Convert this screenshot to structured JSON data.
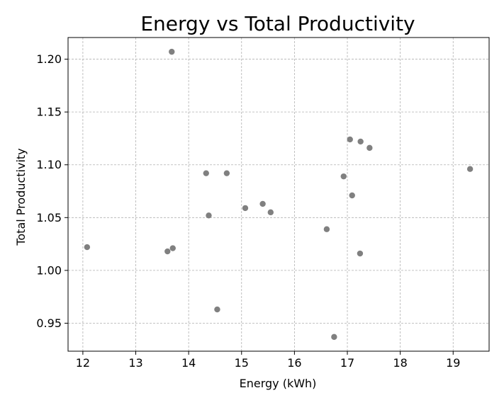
{
  "chart_data": {
    "type": "scatter",
    "title": "Energy vs Total Productivity",
    "xlabel": "Energy (kWh)",
    "ylabel": "Total Productivity",
    "xlim": [
      11.72,
      19.68
    ],
    "ylim": [
      0.9235,
      1.2205
    ],
    "xticks": [
      12,
      13,
      14,
      15,
      16,
      17,
      18,
      19
    ],
    "xtick_labels": [
      "12",
      "13",
      "14",
      "15",
      "16",
      "17",
      "18",
      "19"
    ],
    "yticks": [
      0.95,
      1.0,
      1.05,
      1.1,
      1.15,
      1.2
    ],
    "ytick_labels": [
      "0.95",
      "1.00",
      "1.05",
      "1.10",
      "1.15",
      "1.20"
    ],
    "grid": true,
    "marker_color": "#808080",
    "points": [
      {
        "x": 12.08,
        "y": 1.022
      },
      {
        "x": 13.6,
        "y": 1.018
      },
      {
        "x": 13.7,
        "y": 1.021
      },
      {
        "x": 13.68,
        "y": 1.207
      },
      {
        "x": 14.33,
        "y": 1.092
      },
      {
        "x": 14.38,
        "y": 1.052
      },
      {
        "x": 14.54,
        "y": 0.963
      },
      {
        "x": 14.72,
        "y": 1.092
      },
      {
        "x": 15.07,
        "y": 1.059
      },
      {
        "x": 15.4,
        "y": 1.063
      },
      {
        "x": 15.55,
        "y": 1.055
      },
      {
        "x": 16.61,
        "y": 1.039
      },
      {
        "x": 16.75,
        "y": 0.937
      },
      {
        "x": 16.93,
        "y": 1.089
      },
      {
        "x": 17.05,
        "y": 1.124
      },
      {
        "x": 17.09,
        "y": 1.071
      },
      {
        "x": 17.24,
        "y": 1.016
      },
      {
        "x": 17.25,
        "y": 1.122
      },
      {
        "x": 17.42,
        "y": 1.116
      },
      {
        "x": 19.32,
        "y": 1.096
      }
    ]
  }
}
